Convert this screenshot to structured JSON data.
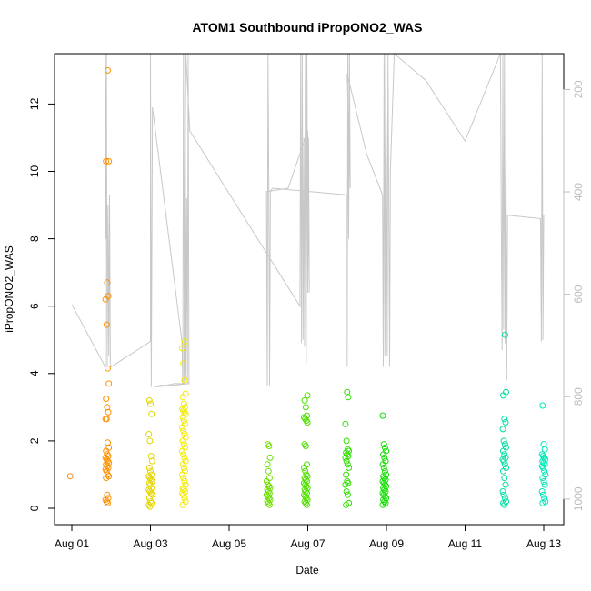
{
  "chart_data": {
    "type": "scatter",
    "title": "ATOM1 Southbound iPropONO2_WAS",
    "xlabel": "Date",
    "ylabel": "iPropONO2_WAS",
    "xlim": [
      0,
      12.25
    ],
    "ylim": [
      -0.4,
      13.5
    ],
    "x_ticks": [
      {
        "value": 0,
        "label": "Aug 01"
      },
      {
        "value": 2,
        "label": "Aug 03"
      },
      {
        "value": 4,
        "label": "Aug 05"
      },
      {
        "value": 6,
        "label": "Aug 07"
      },
      {
        "value": 8,
        "label": "Aug 09"
      },
      {
        "value": 10,
        "label": "Aug 11"
      },
      {
        "value": 12,
        "label": "Aug 13"
      }
    ],
    "y_ticks": [
      0,
      2,
      4,
      6,
      8,
      10,
      12
    ],
    "right_axis": {
      "label": "",
      "ticks": [
        200,
        400,
        600,
        800,
        1000
      ],
      "range_top_to_bottom": [
        130,
        1050
      ],
      "color": "#bdbdbd"
    },
    "grid": false,
    "series": [
      {
        "name": "iPropONO2_WAS",
        "marker": "open-circle",
        "clusters": [
          {
            "x": 0.0,
            "color": "#ff8c1a",
            "values": [
              0.95
            ]
          },
          {
            "x": 0.9,
            "color": "#ff9100",
            "values": [
              13.0,
              10.3,
              10.3,
              6.7,
              6.3,
              6.2,
              5.45,
              4.15,
              3.7,
              3.25,
              3.0,
              2.85,
              2.65,
              2.65,
              1.95,
              1.8,
              1.7,
              1.6,
              1.55,
              1.5,
              1.45,
              1.4,
              1.35,
              1.3,
              1.25,
              1.2,
              1.15,
              1.1,
              1.0,
              0.95,
              0.9,
              0.4,
              0.3,
              0.25,
              0.2,
              0.15
            ]
          },
          {
            "x": 2.0,
            "color": "#e5d400",
            "values": [
              3.2,
              3.1,
              2.8,
              2.2,
              2.0,
              1.55,
              1.4,
              1.2,
              1.1,
              1.0,
              0.95,
              0.9,
              0.85,
              0.8,
              0.75,
              0.7,
              0.6,
              0.55,
              0.5,
              0.45,
              0.4,
              0.3,
              0.2,
              0.15,
              0.1,
              0.05
            ]
          },
          {
            "x": 2.85,
            "color": "#f2ea00",
            "values": [
              4.95,
              4.75,
              4.3,
              3.8,
              3.4,
              3.3,
              3.1,
              3.0,
              2.95,
              2.9,
              2.85,
              2.8,
              2.7,
              2.6,
              2.5,
              2.4,
              2.3,
              2.2,
              2.1,
              2.0,
              1.9,
              1.8,
              1.7,
              1.6,
              1.5,
              1.4,
              1.3,
              1.2,
              1.1,
              1.0,
              0.9,
              0.8,
              0.7,
              0.6,
              0.55,
              0.5,
              0.45,
              0.4,
              0.3,
              0.2,
              0.1
            ]
          },
          {
            "x": 5.0,
            "color": "#6fe000",
            "values": [
              1.9,
              1.85,
              1.5,
              1.3,
              1.1,
              0.9,
              0.8,
              0.7,
              0.65,
              0.6,
              0.55,
              0.5,
              0.45,
              0.4,
              0.35,
              0.3,
              0.25,
              0.2,
              0.15,
              0.1
            ]
          },
          {
            "x": 5.95,
            "color": "#4fe000",
            "values": [
              3.35,
              3.2,
              3.0,
              2.75,
              2.7,
              2.65,
              2.6,
              2.55,
              1.9,
              1.85,
              1.3,
              1.2,
              1.1,
              1.0,
              0.95,
              0.9,
              0.85,
              0.8,
              0.75,
              0.7,
              0.65,
              0.6,
              0.55,
              0.5,
              0.45,
              0.4,
              0.35,
              0.3,
              0.25,
              0.2,
              0.15,
              0.1
            ]
          },
          {
            "x": 7.0,
            "color": "#30e000",
            "values": [
              3.45,
              3.3,
              2.5,
              2.0,
              1.75,
              1.7,
              1.65,
              1.6,
              1.55,
              1.5,
              1.4,
              1.3,
              1.2,
              1.0,
              0.8,
              0.75,
              0.7,
              0.5,
              0.4,
              0.15,
              0.1
            ]
          },
          {
            "x": 7.95,
            "color": "#12e000",
            "values": [
              2.75,
              1.9,
              1.8,
              1.7,
              1.6,
              1.5,
              1.4,
              1.3,
              1.2,
              1.1,
              1.0,
              0.95,
              0.9,
              0.85,
              0.8,
              0.75,
              0.7,
              0.65,
              0.6,
              0.55,
              0.5,
              0.45,
              0.4,
              0.35,
              0.3,
              0.25,
              0.2,
              0.15,
              0.1
            ]
          },
          {
            "x": 11.0,
            "color": "#00e0a0",
            "values": [
              5.15,
              3.45,
              3.35,
              2.65,
              2.55,
              2.35,
              2.0,
              1.9,
              1.8,
              1.7,
              1.6,
              1.5,
              1.45,
              1.4,
              1.3,
              1.2,
              1.1,
              0.9,
              0.7,
              0.5,
              0.4,
              0.3,
              0.2,
              0.15,
              0.1
            ]
          },
          {
            "x": 12.0,
            "color": "#00e8b8",
            "values": [
              3.05,
              1.9,
              1.75,
              1.6,
              1.55,
              1.5,
              1.45,
              1.4,
              1.35,
              1.3,
              1.25,
              1.2,
              1.1,
              1.0,
              0.9,
              0.8,
              0.7,
              0.5,
              0.4,
              0.3,
              0.2,
              0.15
            ]
          }
        ]
      },
      {
        "name": "flight track (right axis)",
        "color": "#c8c8c8",
        "path": [
          [
            0.0,
            6.05
          ],
          [
            0.85,
            4.2
          ],
          [
            0.85,
            13.5
          ],
          [
            0.87,
            8.0
          ],
          [
            0.88,
            13.5
          ],
          [
            0.9,
            4.2
          ],
          [
            0.92,
            9.0
          ],
          [
            0.94,
            4.5
          ],
          [
            0.96,
            9.3
          ],
          [
            0.98,
            4.3
          ],
          [
            1.0,
            4.2
          ],
          [
            2.0,
            4.95
          ],
          [
            2.0,
            13.5
          ],
          [
            2.02,
            3.6
          ],
          [
            2.05,
            11.9
          ],
          [
            2.8,
            4.95
          ],
          [
            2.82,
            3.7
          ],
          [
            2.84,
            13.5
          ],
          [
            2.86,
            4.0
          ],
          [
            2.88,
            13.5
          ],
          [
            2.9,
            3.8
          ],
          [
            2.92,
            9.2
          ],
          [
            2.94,
            3.7
          ],
          [
            2.96,
            13.5
          ],
          [
            2.98,
            3.7
          ],
          [
            2.1,
            3.6
          ],
          [
            2.25,
            3.65
          ],
          [
            2.4,
            3.65
          ],
          [
            2.6,
            3.7
          ],
          [
            2.85,
            3.7
          ],
          [
            2.9,
            13.5
          ],
          [
            3.0,
            11.2
          ],
          [
            5.8,
            6.0
          ],
          [
            5.82,
            13.5
          ],
          [
            5.84,
            4.9
          ],
          [
            5.86,
            13.5
          ],
          [
            5.88,
            5.0
          ],
          [
            5.9,
            11.0
          ],
          [
            5.92,
            4.8
          ],
          [
            5.94,
            13.5
          ],
          [
            5.96,
            4.3
          ],
          [
            5.98,
            13.5
          ],
          [
            6.0,
            6.4
          ],
          [
            6.02,
            11.0
          ],
          [
            6.04,
            6.4
          ],
          [
            6.0,
            11.2
          ],
          [
            5.5,
            9.5
          ],
          [
            4.95,
            9.4
          ],
          [
            4.97,
            3.65
          ],
          [
            4.99,
            13.5
          ],
          [
            5.01,
            9.5
          ],
          [
            5.03,
            3.65
          ],
          [
            5.05,
            9.4
          ],
          [
            5.1,
            9.5
          ],
          [
            7.0,
            9.3
          ],
          [
            7.0,
            4.2
          ],
          [
            7.02,
            13.5
          ],
          [
            7.04,
            8.0
          ],
          [
            7.06,
            13.5
          ],
          [
            7.08,
            9.5
          ],
          [
            7.0,
            12.9
          ],
          [
            7.5,
            10.5
          ],
          [
            7.9,
            9.3
          ],
          [
            7.92,
            4.2
          ],
          [
            7.94,
            13.5
          ],
          [
            7.96,
            4.5
          ],
          [
            7.98,
            13.5
          ],
          [
            8.0,
            10.0
          ],
          [
            8.02,
            4.5
          ],
          [
            8.04,
            13.5
          ],
          [
            8.06,
            9.0
          ],
          [
            8.08,
            4.2
          ],
          [
            8.1,
            10.0
          ],
          [
            8.2,
            13.5
          ],
          [
            9.0,
            12.7
          ],
          [
            10.0,
            10.9
          ],
          [
            10.9,
            13.5
          ],
          [
            10.92,
            8.6
          ],
          [
            10.94,
            4.7
          ],
          [
            10.96,
            13.5
          ],
          [
            10.98,
            5.3
          ],
          [
            11.0,
            13.5
          ],
          [
            11.02,
            4.9
          ],
          [
            11.04,
            10.5
          ],
          [
            11.06,
            3.8
          ],
          [
            11.08,
            8.7
          ],
          [
            11.92,
            8.6
          ],
          [
            11.94,
            4.95
          ],
          [
            11.96,
            13.5
          ],
          [
            11.98,
            5.0
          ],
          [
            12.0,
            8.7
          ]
        ]
      }
    ]
  }
}
